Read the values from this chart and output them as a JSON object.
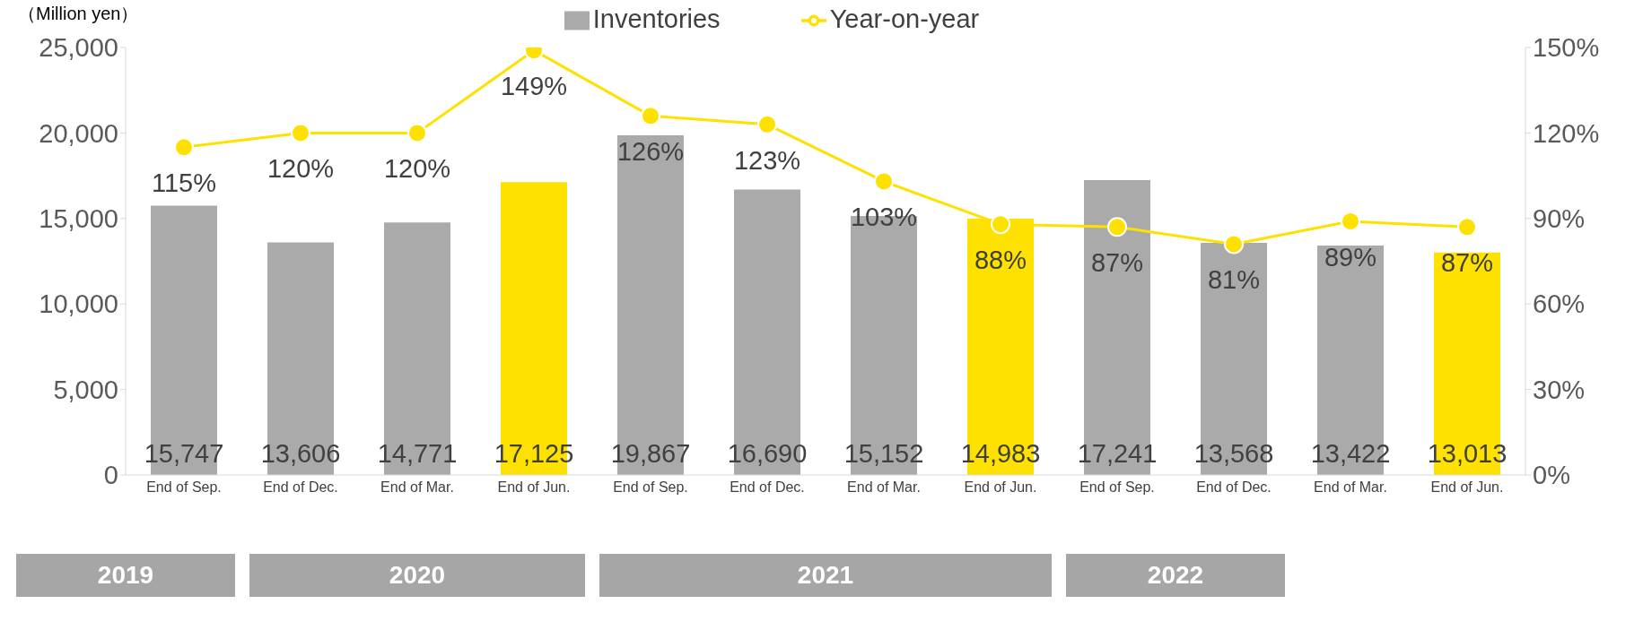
{
  "chart_data": {
    "type": "bar",
    "ylabel": "（Million yen）",
    "categories": [
      "End of Sep.",
      "End of Dec.",
      "End of Mar.",
      "End of Jun.",
      "End of Sep.",
      "End of Dec.",
      "End of Mar.",
      "End of Jun.",
      "End of Sep.",
      "End of Dec.",
      "End of Mar.",
      "End of Jun."
    ],
    "series": [
      {
        "name": "Inventories",
        "color": "#aaaaaa",
        "colors": [
          "#aaaaaa",
          "#aaaaaa",
          "#aaaaaa",
          "#ffe100",
          "#aaaaaa",
          "#aaaaaa",
          "#aaaaaa",
          "#ffe100",
          "#aaaaaa",
          "#aaaaaa",
          "#aaaaaa",
          "#ffe100"
        ],
        "values": [
          15747,
          13606,
          14771,
          17125,
          19867,
          16690,
          15152,
          14983,
          17241,
          13568,
          13422,
          13013
        ],
        "value_labels": [
          "15,747",
          "13,606",
          "14,771",
          "17,125",
          "19,867",
          "16,690",
          "15,152",
          "14,983",
          "17,241",
          "13,568",
          "13,422",
          "13,013"
        ]
      },
      {
        "type": "line",
        "name": "Year-on-year",
        "color": "#ffe100",
        "axis": "y2",
        "marker": "circle",
        "values": [
          115,
          120,
          120,
          149,
          126,
          123,
          103,
          88,
          87,
          81,
          89,
          87
        ],
        "value_labels": [
          "115%",
          "120%",
          "120%",
          "149%",
          "126%",
          "123%",
          "103%",
          "88%",
          "87%",
          "81%",
          "89%",
          "87%"
        ]
      }
    ],
    "ylim": [
      0,
      25000
    ],
    "yticks": [
      {
        "value": 0,
        "label": "0"
      },
      {
        "value": 5000,
        "label": "5,000"
      },
      {
        "value": 10000,
        "label": "10,000"
      },
      {
        "value": 15000,
        "label": "15,000"
      },
      {
        "value": 20000,
        "label": "20,000"
      },
      {
        "value": 25000,
        "label": "25,000"
      }
    ],
    "y2lim": [
      0,
      150
    ],
    "y2ticks": [
      {
        "value": 0,
        "label": "0%"
      },
      {
        "value": 30,
        "label": "30%"
      },
      {
        "value": 60,
        "label": "60%"
      },
      {
        "value": 90,
        "label": "90%"
      },
      {
        "value": 120,
        "label": "120%"
      },
      {
        "value": 150,
        "label": "150%"
      }
    ],
    "legend": "top",
    "annotations": [
      "2019",
      "2020",
      "2021",
      "2022"
    ]
  }
}
